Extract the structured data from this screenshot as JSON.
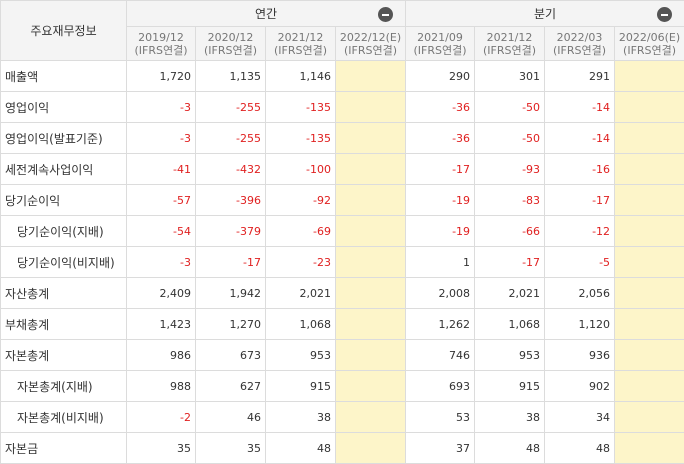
{
  "header": {
    "title": "주요재무정보",
    "annual_label": "연간",
    "quarter_label": "분기"
  },
  "periods": {
    "annual": [
      {
        "period": "2019/12",
        "basis": "(IFRS연결)"
      },
      {
        "period": "2020/12",
        "basis": "(IFRS연결)"
      },
      {
        "period": "2021/12",
        "basis": "(IFRS연결)"
      },
      {
        "period": "2022/12(E)",
        "basis": "(IFRS연결)"
      }
    ],
    "quarter": [
      {
        "period": "2021/09",
        "basis": "(IFRS연결)"
      },
      {
        "period": "2021/12",
        "basis": "(IFRS연결)"
      },
      {
        "period": "2022/03",
        "basis": "(IFRS연결)"
      },
      {
        "period": "2022/06(E)",
        "basis": "(IFRS연결)"
      }
    ]
  },
  "rows": [
    {
      "label": "매출액",
      "sub": false,
      "annual": [
        "1,720",
        "1,135",
        "1,146",
        ""
      ],
      "quarter": [
        "290",
        "301",
        "291",
        ""
      ]
    },
    {
      "label": "영업이익",
      "sub": false,
      "annual": [
        "-3",
        "-255",
        "-135",
        ""
      ],
      "quarter": [
        "-36",
        "-50",
        "-14",
        ""
      ]
    },
    {
      "label": "영업이익(발표기준)",
      "sub": false,
      "annual": [
        "-3",
        "-255",
        "-135",
        ""
      ],
      "quarter": [
        "-36",
        "-50",
        "-14",
        ""
      ]
    },
    {
      "label": "세전계속사업이익",
      "sub": false,
      "annual": [
        "-41",
        "-432",
        "-100",
        ""
      ],
      "quarter": [
        "-17",
        "-93",
        "-16",
        ""
      ]
    },
    {
      "label": "당기순이익",
      "sub": false,
      "annual": [
        "-57",
        "-396",
        "-92",
        ""
      ],
      "quarter": [
        "-19",
        "-83",
        "-17",
        ""
      ]
    },
    {
      "label": "당기순이익(지배)",
      "sub": true,
      "annual": [
        "-54",
        "-379",
        "-69",
        ""
      ],
      "quarter": [
        "-19",
        "-66",
        "-12",
        ""
      ]
    },
    {
      "label": "당기순이익(비지배)",
      "sub": true,
      "annual": [
        "-3",
        "-17",
        "-23",
        ""
      ],
      "quarter": [
        "1",
        "-17",
        "-5",
        ""
      ]
    },
    {
      "label": "자산총계",
      "sub": false,
      "annual": [
        "2,409",
        "1,942",
        "2,021",
        ""
      ],
      "quarter": [
        "2,008",
        "2,021",
        "2,056",
        ""
      ]
    },
    {
      "label": "부채총계",
      "sub": false,
      "annual": [
        "1,423",
        "1,270",
        "1,068",
        ""
      ],
      "quarter": [
        "1,262",
        "1,068",
        "1,120",
        ""
      ]
    },
    {
      "label": "자본총계",
      "sub": false,
      "annual": [
        "986",
        "673",
        "953",
        ""
      ],
      "quarter": [
        "746",
        "953",
        "936",
        ""
      ]
    },
    {
      "label": "자본총계(지배)",
      "sub": true,
      "annual": [
        "988",
        "627",
        "915",
        ""
      ],
      "quarter": [
        "693",
        "915",
        "902",
        ""
      ]
    },
    {
      "label": "자본총계(비지배)",
      "sub": true,
      "annual": [
        "-2",
        "46",
        "38",
        ""
      ],
      "quarter": [
        "53",
        "38",
        "34",
        ""
      ]
    },
    {
      "label": "자본금",
      "sub": false,
      "annual": [
        "35",
        "35",
        "48",
        ""
      ],
      "quarter": [
        "37",
        "48",
        "48",
        ""
      ]
    }
  ],
  "colors": {
    "header_bg": "#f4f4f4",
    "estimate_bg": "#fdf5c9",
    "negative": "#e02020",
    "border": "#dcdcdc"
  }
}
